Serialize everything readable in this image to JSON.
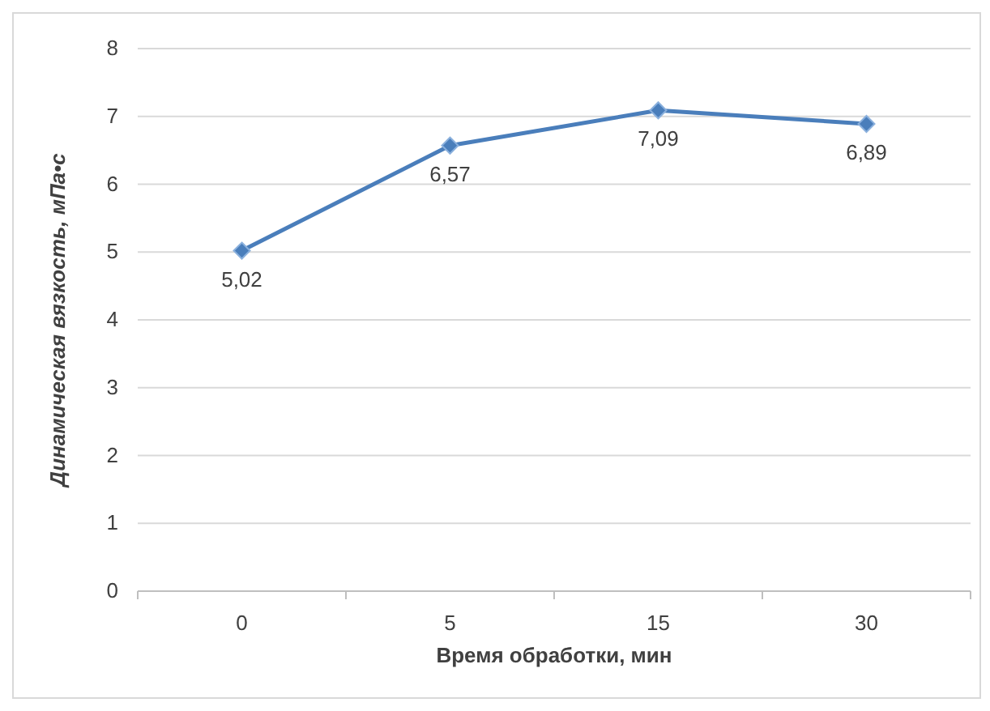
{
  "chart_data": {
    "type": "line",
    "xlabel": "Время обработки, мин",
    "ylabel": "Динамическая вязкость, мПа•с",
    "categories": [
      "0",
      "5",
      "15",
      "30"
    ],
    "series": [
      {
        "color": "#4a7ebb",
        "values": [
          5.02,
          6.57,
          7.09,
          6.89
        ],
        "value_labels": [
          "5,02",
          "6,57",
          "7,09",
          "6,89"
        ]
      }
    ],
    "ylim": [
      0,
      8
    ],
    "yticks": [
      0,
      1,
      2,
      3,
      4,
      5,
      6,
      7,
      8
    ],
    "grid": "y",
    "marker": "diamond",
    "line_style": "solid"
  }
}
